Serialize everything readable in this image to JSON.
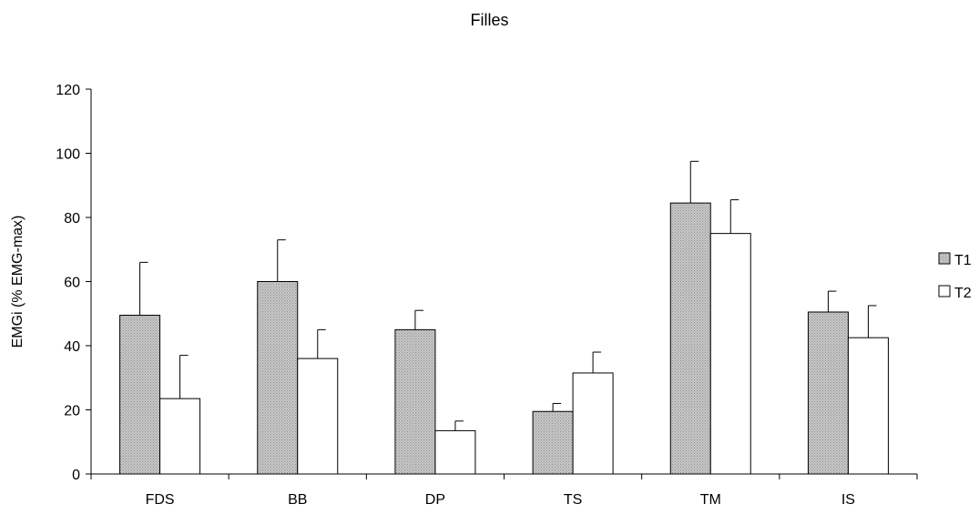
{
  "chart_data": {
    "type": "bar",
    "title": "Filles",
    "xlabel": "",
    "ylabel": "EMGi (% EMG-max)",
    "ylim": [
      0,
      120
    ],
    "yticks": [
      0,
      20,
      40,
      60,
      80,
      100,
      120
    ],
    "grid": false,
    "legend_position": "right",
    "categories": [
      "FDS",
      "BB",
      "DP",
      "TS",
      "TM",
      "IS"
    ],
    "series": [
      {
        "name": "T1",
        "color": "#c0c0c0",
        "pattern": "dotted-grey",
        "values": [
          49.5,
          60,
          45,
          19.5,
          84.5,
          50.5
        ],
        "errors": [
          16.5,
          13,
          6,
          2.5,
          13,
          6.5
        ]
      },
      {
        "name": "T2",
        "color": "#ffffff",
        "pattern": "none",
        "values": [
          23.5,
          36,
          13.5,
          31.5,
          75,
          42.5
        ],
        "errors": [
          13.5,
          9,
          3,
          6.5,
          10.5,
          10
        ]
      }
    ]
  }
}
